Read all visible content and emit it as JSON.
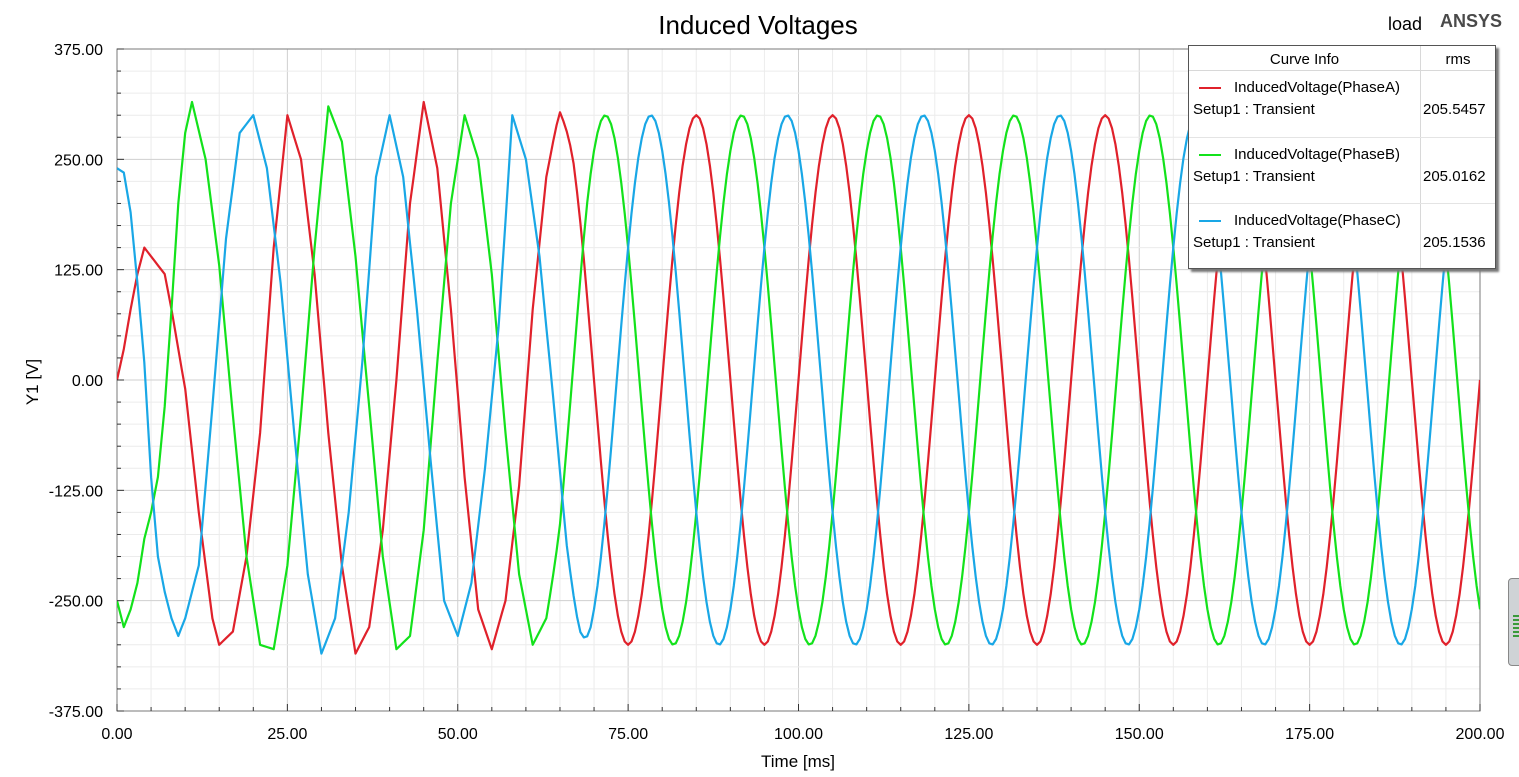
{
  "chart_data": {
    "type": "line",
    "title": "Induced Voltages",
    "xlabel": "Time [ms]",
    "ylabel": "Y1 [V]",
    "xlim": [
      0,
      200
    ],
    "ylim": [
      -375,
      375
    ],
    "x_ticks": [
      "0.00",
      "25.00",
      "50.00",
      "75.00",
      "100.00",
      "125.00",
      "150.00",
      "175.00",
      "200.00"
    ],
    "y_ticks": [
      "375.00",
      "250.00",
      "125.00",
      "0.00",
      "-125.00",
      "-250.00",
      "-375.00"
    ],
    "grid": true,
    "legend_position": "top-right",
    "frequency_hz": 50,
    "sample_step_ms": 0.5,
    "series": [
      {
        "name": "InducedVoltage(PhaseA)",
        "color": "#e0212b",
        "rms": "205.5457",
        "steady_amplitude": 300,
        "phase_deg": 0,
        "startup_points": [
          [
            0,
            0
          ],
          [
            1,
            35
          ],
          [
            2,
            80
          ],
          [
            3,
            120
          ],
          [
            4,
            150
          ],
          [
            5,
            140
          ],
          [
            6,
            130
          ],
          [
            7,
            120
          ],
          [
            8,
            80
          ],
          [
            10,
            -10
          ],
          [
            12,
            -150
          ],
          [
            14,
            -270
          ],
          [
            15,
            -300
          ],
          [
            17,
            -285
          ],
          [
            19,
            -200
          ],
          [
            21,
            -60
          ],
          [
            23,
            150
          ],
          [
            25,
            300
          ],
          [
            27,
            250
          ],
          [
            29,
            120
          ],
          [
            31,
            -60
          ],
          [
            33,
            -210
          ],
          [
            35,
            -310
          ],
          [
            37,
            -280
          ],
          [
            39,
            -170
          ],
          [
            41,
            0
          ],
          [
            43,
            200
          ],
          [
            45,
            315
          ],
          [
            47,
            240
          ],
          [
            49,
            80
          ],
          [
            51,
            -110
          ],
          [
            53,
            -260
          ],
          [
            55,
            -305
          ],
          [
            57,
            -250
          ],
          [
            59,
            -120
          ],
          [
            61,
            80
          ],
          [
            63,
            230
          ],
          [
            65,
            305
          ],
          [
            67,
            250
          ],
          [
            69,
            120
          ]
        ]
      },
      {
        "name": "InducedVoltage(PhaseB)",
        "color": "#13e21b",
        "rms": "205.0162",
        "steady_amplitude": 300,
        "phase_deg": -120,
        "startup_points": [
          [
            0,
            -250
          ],
          [
            1,
            -280
          ],
          [
            2,
            -260
          ],
          [
            3,
            -230
          ],
          [
            4,
            -180
          ],
          [
            5,
            -150
          ],
          [
            6,
            -110
          ],
          [
            7,
            -30
          ],
          [
            8,
            80
          ],
          [
            9,
            200
          ],
          [
            10,
            280
          ],
          [
            11,
            315
          ],
          [
            13,
            250
          ],
          [
            15,
            130
          ],
          [
            17,
            -40
          ],
          [
            19,
            -200
          ],
          [
            21,
            -300
          ],
          [
            23,
            -305
          ],
          [
            25,
            -210
          ],
          [
            27,
            -40
          ],
          [
            29,
            150
          ],
          [
            31,
            310
          ],
          [
            33,
            270
          ],
          [
            35,
            140
          ],
          [
            37,
            -30
          ],
          [
            39,
            -200
          ],
          [
            41,
            -305
          ],
          [
            43,
            -290
          ],
          [
            45,
            -170
          ],
          [
            47,
            20
          ],
          [
            49,
            200
          ],
          [
            51,
            300
          ],
          [
            53,
            250
          ],
          [
            55,
            120
          ],
          [
            57,
            -60
          ],
          [
            59,
            -220
          ],
          [
            61,
            -300
          ],
          [
            63,
            -270
          ],
          [
            65,
            -170
          ],
          [
            67,
            0
          ],
          [
            69,
            170
          ]
        ]
      },
      {
        "name": "InducedVoltage(PhaseC)",
        "color": "#19a7e6",
        "rms": "205.1536",
        "steady_amplitude": 300,
        "phase_deg": 120,
        "startup_points": [
          [
            0,
            240
          ],
          [
            1,
            235
          ],
          [
            2,
            190
          ],
          [
            3,
            110
          ],
          [
            4,
            20
          ],
          [
            5,
            -110
          ],
          [
            6,
            -200
          ],
          [
            7,
            -240
          ],
          [
            8,
            -270
          ],
          [
            9,
            -290
          ],
          [
            10,
            -270
          ],
          [
            12,
            -210
          ],
          [
            14,
            -30
          ],
          [
            16,
            160
          ],
          [
            18,
            280
          ],
          [
            20,
            300
          ],
          [
            22,
            240
          ],
          [
            24,
            110
          ],
          [
            26,
            -60
          ],
          [
            28,
            -220
          ],
          [
            30,
            -310
          ],
          [
            32,
            -270
          ],
          [
            34,
            -150
          ],
          [
            36,
            20
          ],
          [
            38,
            230
          ],
          [
            40,
            300
          ],
          [
            42,
            230
          ],
          [
            44,
            80
          ],
          [
            46,
            -90
          ],
          [
            48,
            -250
          ],
          [
            50,
            -290
          ],
          [
            52,
            -230
          ],
          [
            54,
            -100
          ],
          [
            56,
            60
          ],
          [
            58,
            300
          ],
          [
            60,
            250
          ],
          [
            62,
            140
          ],
          [
            64,
            -20
          ],
          [
            66,
            -170
          ],
          [
            68,
            -260
          ],
          [
            70,
            -290
          ]
        ]
      }
    ]
  },
  "legend": {
    "header_curve": "Curve Info",
    "header_value": "rms",
    "setup_label": "Setup1 : Transient"
  },
  "top_right": {
    "plot_name": "load",
    "brand": "ANSYS"
  }
}
